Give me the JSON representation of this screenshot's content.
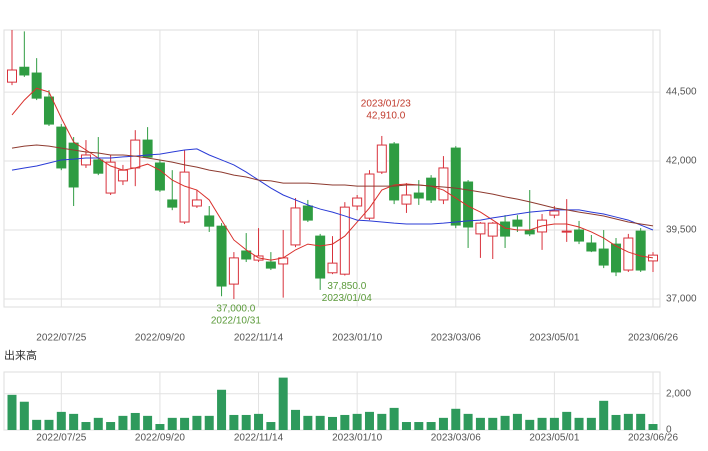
{
  "chart_data": [
    {
      "type": "candlestick",
      "categories": [
        null,
        null,
        null,
        null,
        "2022/07/25",
        null,
        null,
        null,
        null,
        null,
        null,
        null,
        "2022/09/20",
        null,
        null,
        null,
        null,
        null,
        null,
        null,
        "2022/11/14",
        null,
        null,
        null,
        null,
        null,
        null,
        null,
        "2023/01/10",
        null,
        null,
        null,
        null,
        null,
        null,
        null,
        "2023/03/06",
        null,
        null,
        null,
        null,
        null,
        null,
        null,
        "2023/05/01",
        null,
        null,
        null,
        null,
        null,
        null,
        null,
        "2023/06/26"
      ],
      "open": [
        44860,
        45400,
        45190,
        44320,
        43230,
        42650,
        41860,
        42040,
        40840,
        41280,
        41750,
        42760,
        41930,
        40590,
        39790,
        40370,
        40010,
        39640,
        37540,
        38740,
        38410,
        38340,
        38270,
        38960,
        40370,
        39280,
        37950,
        37900,
        40370,
        39930,
        41600,
        42620,
        40440,
        40840,
        41380,
        40590,
        42470,
        41240,
        39360,
        39280,
        39790,
        39860,
        39500,
        39430,
        40040,
        39430,
        39500,
        39030,
        38810,
        38990,
        38050,
        39460,
        38380
      ],
      "high": [
        46750,
        46700,
        45730,
        44570,
        43340,
        42870,
        42760,
        42870,
        42220,
        41860,
        43120,
        43230,
        42040,
        41670,
        42400,
        40950,
        40370,
        39750,
        38700,
        39390,
        39570,
        38700,
        39500,
        40660,
        40590,
        39360,
        39280,
        40510,
        40770,
        41670,
        42910,
        42690,
        41200,
        41310,
        41490,
        42180,
        42540,
        41310,
        39790,
        39790,
        40040,
        40040,
        40950,
        40080,
        40370,
        40620,
        39830,
        39320,
        39500,
        39210,
        39360,
        39570,
        38700
      ],
      "low": [
        44750,
        45050,
        44210,
        43270,
        41670,
        40370,
        41750,
        41490,
        40770,
        41130,
        41090,
        42110,
        40880,
        40220,
        39720,
        40300,
        39430,
        37100,
        37000,
        38340,
        38340,
        38050,
        37050,
        38880,
        39790,
        37330,
        37900,
        37850,
        40220,
        39860,
        41530,
        40440,
        40120,
        40410,
        40480,
        40440,
        39570,
        38850,
        38490,
        38450,
        38850,
        39430,
        39280,
        38780,
        39930,
        39070,
        38990,
        38700,
        38120,
        37830,
        37980,
        37980,
        37980
      ],
      "close": [
        45300,
        45120,
        44280,
        43340,
        41750,
        41060,
        42220,
        41560,
        41960,
        41670,
        42760,
        42140,
        40950,
        40330,
        41600,
        40590,
        39640,
        37470,
        38490,
        38450,
        38560,
        38120,
        38490,
        40300,
        39860,
        37760,
        38300,
        40330,
        40660,
        41530,
        42580,
        40590,
        40770,
        40660,
        40590,
        41750,
        39680,
        39610,
        39750,
        39750,
        39280,
        39640,
        39360,
        39860,
        40190,
        39460,
        39100,
        38740,
        38230,
        37980,
        39210,
        38050,
        38590
      ],
      "up_color": "#d8323c",
      "down_color": "#2f9c42",
      "series": [
        {
          "color": "#d9302c",
          "values": [
            43670,
            44210,
            44640,
            44500,
            43560,
            42690,
            42400,
            42110,
            41820,
            41670,
            41750,
            41890,
            41670,
            41310,
            41090,
            40950,
            40590,
            39860,
            39140,
            38780,
            38490,
            38410,
            38490,
            38780,
            38990,
            38920,
            38990,
            39280,
            39790,
            40300,
            40950,
            41130,
            41170,
            41130,
            41090,
            40950,
            40660,
            40370,
            40150,
            39860,
            39570,
            39500,
            39500,
            39650,
            39720,
            39720,
            39610,
            39430,
            39210,
            38920,
            38700,
            38560,
            38490
          ]
        },
        {
          "color": "#2a3bd6",
          "values": [
            41670,
            41750,
            41820,
            41930,
            42040,
            42070,
            42110,
            42110,
            42110,
            42150,
            42180,
            42220,
            42250,
            42330,
            42400,
            42440,
            42220,
            42040,
            41860,
            41600,
            41310,
            41020,
            40770,
            40590,
            40410,
            40260,
            40150,
            40010,
            39860,
            39830,
            39790,
            39750,
            39720,
            39720,
            39720,
            39750,
            39790,
            39830,
            39860,
            39940,
            40010,
            40080,
            40150,
            40190,
            40230,
            40230,
            40230,
            40150,
            40080,
            39970,
            39860,
            39680,
            39500
          ]
        },
        {
          "color": "#8e3b30",
          "values": [
            42470,
            42540,
            42580,
            42540,
            42470,
            42400,
            42330,
            42290,
            42220,
            42220,
            42180,
            42110,
            42040,
            41960,
            41860,
            41780,
            41670,
            41600,
            41490,
            41420,
            41310,
            41280,
            41200,
            41200,
            41200,
            41170,
            41130,
            41130,
            41090,
            41090,
            41090,
            41090,
            41130,
            41130,
            41090,
            41060,
            41020,
            40950,
            40880,
            40800,
            40700,
            40620,
            40520,
            40410,
            40300,
            40230,
            40150,
            40080,
            40010,
            39900,
            39790,
            39720,
            39650
          ]
        }
      ],
      "annotations": [
        {
          "date": "2023/01/23",
          "text": "42,910.0"
        },
        {
          "date": "2022/10/31",
          "text": "37,000.0"
        },
        {
          "date": "2023/01/04",
          "text": "37,850.0"
        }
      ],
      "ylim": [
        36710,
        46750
      ],
      "yticks": [
        {
          "value": 37000,
          "label": "37,000"
        },
        {
          "value": 39500,
          "label": "39,500"
        },
        {
          "value": 42000,
          "label": "42,000"
        },
        {
          "value": 44500,
          "label": "44,500"
        }
      ],
      "grid": true
    },
    {
      "type": "bar",
      "title": "出来高",
      "categories": [
        null,
        null,
        null,
        null,
        "2022/07/25",
        null,
        null,
        null,
        null,
        null,
        null,
        null,
        "2022/09/20",
        null,
        null,
        null,
        null,
        null,
        null,
        null,
        "2022/11/14",
        null,
        null,
        null,
        null,
        null,
        null,
        null,
        "2023/01/10",
        null,
        null,
        null,
        null,
        null,
        null,
        null,
        "2023/03/06",
        null,
        null,
        null,
        null,
        null,
        null,
        null,
        "2023/05/01",
        null,
        null,
        null,
        null,
        null,
        null,
        null,
        "2023/06/26"
      ],
      "values": [
        1940,
        1560,
        560,
        560,
        1000,
        890,
        440,
        670,
        440,
        780,
        940,
        780,
        330,
        670,
        670,
        780,
        780,
        2220,
        830,
        830,
        890,
        440,
        2890,
        1110,
        780,
        780,
        720,
        830,
        890,
        1000,
        890,
        1220,
        440,
        440,
        440,
        670,
        1170,
        890,
        670,
        670,
        780,
        890,
        560,
        670,
        670,
        1000,
        670,
        670,
        1610,
        830,
        890,
        890,
        330
      ],
      "color": "#2e9a5c",
      "ylim": [
        0,
        3200
      ],
      "yticks": [
        0,
        {
          "value": 2000,
          "label": "2,000"
        }
      ],
      "grid": true
    }
  ]
}
